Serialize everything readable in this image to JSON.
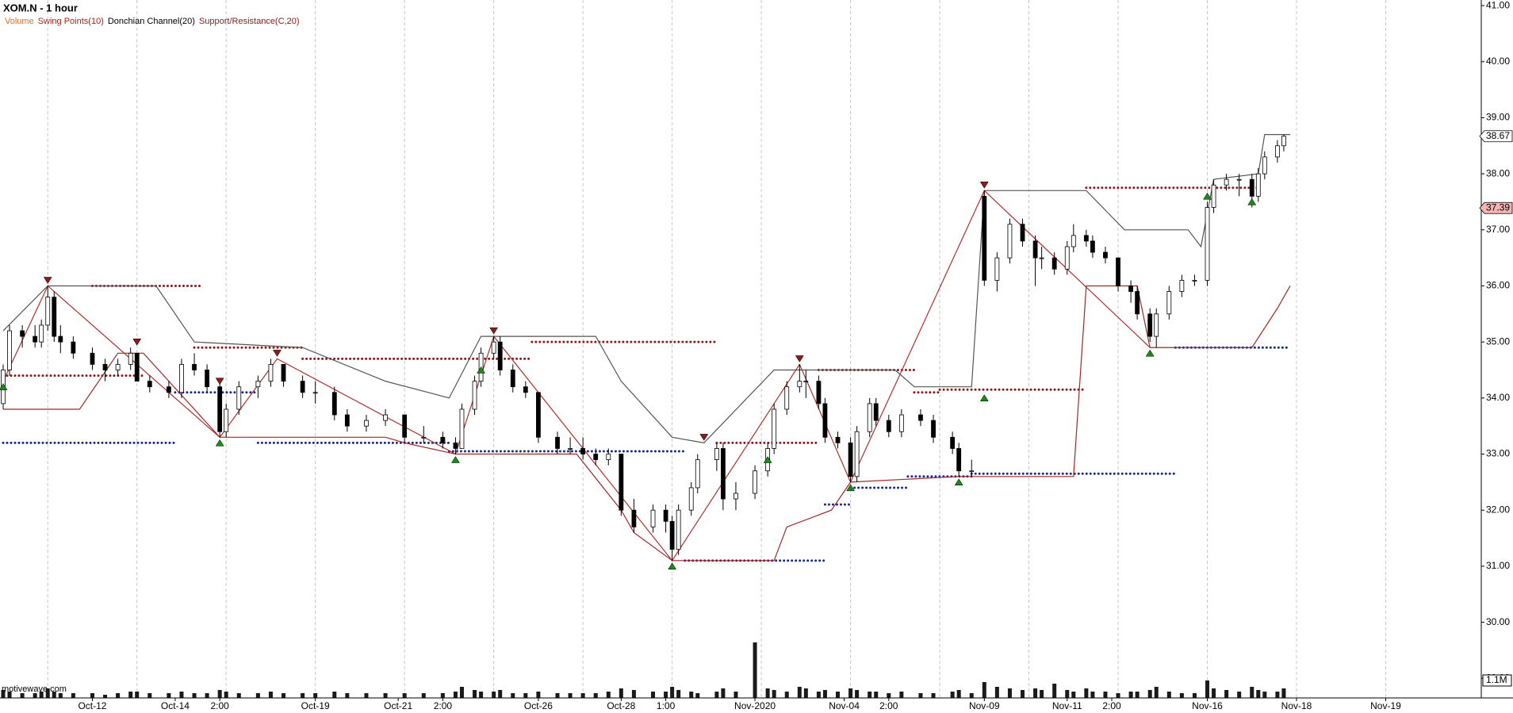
{
  "chart_data": {
    "type": "candlestick",
    "title": "XOM.N - 1 hour",
    "legend": [
      {
        "name": "Volume",
        "color": "#e07020"
      },
      {
        "name": "Swing Points(10)",
        "color": "#b02020"
      },
      {
        "name": "Donchian Channel(20)",
        "color": "#000000"
      },
      {
        "name": "Support/Resistance(C,20)",
        "color": "#8b1a1a"
      }
    ],
    "watermark": "motivewave.com",
    "xlim": [
      0,
      232
    ],
    "xgrid": [
      7,
      21,
      35,
      49,
      63,
      77,
      91,
      105,
      119,
      133,
      147,
      161,
      175,
      189,
      203,
      217
    ],
    "xticks": [
      {
        "value": 14,
        "label": "Oct-12"
      },
      {
        "value": 27,
        "label": "Oct-14"
      },
      {
        "value": 34,
        "label": "2:00"
      },
      {
        "value": 49,
        "label": "Oct-19"
      },
      {
        "value": 62,
        "label": "Oct-21"
      },
      {
        "value": 69,
        "label": "2:00"
      },
      {
        "value": 84,
        "label": "Oct-26"
      },
      {
        "value": 97,
        "label": "Oct-28"
      },
      {
        "value": 104,
        "label": "1:00"
      },
      {
        "value": 118,
        "label": "Nov-2020"
      },
      {
        "value": 132,
        "label": "Nov-04"
      },
      {
        "value": 139,
        "label": "2:00"
      },
      {
        "value": 154,
        "label": "Nov-09"
      },
      {
        "value": 167,
        "label": "Nov-11"
      },
      {
        "value": 174,
        "label": "2:00"
      },
      {
        "value": 189,
        "label": "Nov-16"
      },
      {
        "value": 203,
        "label": "Nov-18"
      },
      {
        "value": 217,
        "label": "Nov-19"
      }
    ],
    "ylim": [
      28.65,
      41.1
    ],
    "yticks": [
      {
        "value": 29,
        "label": "29.00"
      },
      {
        "value": 30,
        "label": "30.00"
      },
      {
        "value": 31,
        "label": "31.00"
      },
      {
        "value": 32,
        "label": "32.00"
      },
      {
        "value": 33,
        "label": "33.00"
      },
      {
        "value": 34,
        "label": "34.00"
      },
      {
        "value": 35,
        "label": "35.00"
      },
      {
        "value": 36,
        "label": "36.00"
      },
      {
        "value": 37,
        "label": "37.00"
      },
      {
        "value": 38,
        "label": "38.00"
      },
      {
        "value": 39,
        "label": "39.00"
      },
      {
        "value": 40,
        "label": "40.00"
      },
      {
        "value": 41,
        "label": "41.00"
      }
    ],
    "up_color": "#ffffff",
    "down_color": "#000000",
    "x": [
      0,
      1,
      3,
      5,
      6,
      7,
      8,
      9,
      11,
      14,
      16,
      18,
      20,
      21,
      23,
      26,
      28,
      30,
      32,
      34,
      35,
      37,
      40,
      42,
      44,
      47,
      49,
      52,
      54,
      57,
      60,
      63,
      66,
      69,
      71,
      72,
      74,
      75,
      77,
      78,
      80,
      82,
      84,
      87,
      89,
      91,
      93,
      95,
      97,
      99,
      102,
      104,
      105,
      106,
      108,
      109,
      112,
      113,
      115,
      118,
      120,
      121,
      123,
      125,
      126,
      128,
      129,
      131,
      133,
      134,
      136,
      137,
      139,
      141,
      144,
      146,
      149,
      150,
      152,
      154,
      156,
      158,
      160,
      162,
      163,
      165,
      167,
      168,
      170,
      171,
      173,
      175,
      177,
      178,
      180,
      181,
      183,
      185,
      187,
      189,
      190,
      192,
      194,
      196,
      197,
      198,
      200,
      201
    ],
    "open": [
      33.9,
      34.5,
      35.2,
      35.1,
      35.0,
      35.3,
      35.8,
      35.1,
      35.0,
      34.8,
      34.6,
      34.5,
      34.6,
      34.8,
      34.3,
      34.2,
      34.1,
      34.6,
      34.5,
      34.2,
      33.4,
      33.8,
      34.2,
      34.3,
      34.6,
      34.3,
      34.1,
      34.1,
      33.7,
      33.5,
      33.6,
      33.7,
      33.3,
      33.3,
      33.2,
      33.1,
      33.8,
      34.3,
      34.8,
      35.0,
      34.5,
      34.2,
      34.1,
      33.3,
      33.1,
      33.1,
      33.0,
      32.9,
      33.0,
      32.0,
      31.7,
      32.0,
      31.8,
      31.3,
      32.0,
      32.4,
      32.9,
      33.1,
      32.2,
      32.3,
      32.7,
      33.1,
      33.8,
      34.2,
      34.3,
      34.3,
      33.9,
      33.3,
      33.2,
      32.6,
      33.4,
      33.9,
      33.6,
      33.4,
      33.7,
      33.6,
      33.3,
      33.1,
      32.7,
      37.6,
      36.1,
      36.5,
      37.1,
      36.8,
      36.5,
      36.5,
      36.3,
      36.7,
      36.9,
      36.8,
      36.6,
      36.5,
      36.0,
      35.9,
      35.5,
      35.1,
      35.5,
      35.9,
      36.1,
      36.1,
      37.4,
      37.8,
      37.9,
      37.9,
      37.6,
      38.0,
      38.3,
      38.5
    ],
    "high": [
      34.6,
      35.3,
      35.3,
      35.3,
      35.4,
      36.0,
      35.9,
      35.3,
      35.1,
      34.9,
      34.7,
      34.7,
      34.9,
      34.8,
      34.4,
      34.3,
      34.7,
      34.8,
      34.6,
      34.3,
      33.9,
      34.3,
      34.4,
      34.7,
      34.6,
      34.4,
      34.3,
      34.2,
      33.8,
      33.7,
      33.8,
      33.7,
      33.5,
      33.4,
      33.3,
      33.9,
      34.4,
      34.9,
      35.1,
      35.1,
      34.6,
      34.3,
      34.1,
      33.4,
      33.3,
      33.3,
      33.1,
      33.1,
      33.0,
      32.2,
      32.1,
      32.1,
      31.9,
      32.1,
      32.5,
      33.0,
      33.2,
      33.2,
      32.5,
      32.8,
      33.2,
      33.9,
      34.3,
      34.6,
      34.5,
      34.4,
      34.0,
      33.4,
      33.3,
      33.5,
      34.0,
      34.0,
      33.7,
      33.8,
      33.8,
      33.7,
      33.4,
      33.2,
      32.9,
      37.7,
      36.6,
      37.2,
      37.2,
      36.9,
      36.7,
      36.6,
      36.8,
      37.1,
      37.0,
      36.9,
      36.7,
      36.5,
      36.1,
      36.0,
      35.6,
      35.6,
      36.0,
      36.2,
      36.2,
      37.5,
      37.9,
      38.0,
      38.0,
      38.0,
      38.1,
      38.4,
      38.6,
      38.7
    ],
    "low": [
      33.8,
      34.4,
      34.9,
      34.9,
      34.9,
      35.2,
      35.0,
      34.8,
      34.7,
      34.5,
      34.3,
      34.4,
      34.5,
      34.3,
      34.1,
      34.0,
      34.0,
      34.4,
      34.1,
      33.3,
      33.3,
      33.7,
      34.0,
      34.2,
      34.2,
      34.0,
      33.9,
      33.6,
      33.4,
      33.4,
      33.5,
      33.2,
      33.2,
      33.1,
      33.0,
      33.1,
      33.7,
      34.2,
      34.7,
      34.4,
      34.1,
      34.0,
      33.2,
      33.0,
      33.0,
      32.9,
      32.8,
      32.8,
      31.9,
      31.6,
      31.6,
      31.6,
      31.1,
      31.2,
      31.9,
      32.3,
      32.7,
      32.0,
      32.0,
      32.2,
      32.6,
      33.0,
      33.7,
      34.1,
      34.0,
      33.8,
      33.2,
      33.1,
      32.5,
      32.5,
      33.3,
      33.5,
      33.3,
      33.3,
      33.5,
      33.2,
      33.0,
      32.6,
      32.6,
      36.0,
      35.9,
      36.4,
      36.7,
      36.0,
      36.3,
      36.2,
      36.2,
      36.6,
      36.7,
      36.5,
      36.4,
      35.9,
      35.7,
      35.4,
      35.0,
      34.9,
      35.4,
      35.8,
      36.0,
      36.0,
      37.3,
      37.7,
      37.6,
      37.4,
      37.5,
      37.9,
      38.2,
      38.4
    ],
    "close": [
      34.5,
      35.2,
      35.1,
      35.0,
      35.3,
      35.8,
      35.1,
      35.0,
      34.8,
      34.6,
      34.5,
      34.6,
      34.8,
      34.3,
      34.2,
      34.1,
      34.6,
      34.5,
      34.2,
      33.4,
      33.8,
      34.2,
      34.3,
      34.6,
      34.3,
      34.1,
      34.1,
      33.7,
      33.5,
      33.6,
      33.7,
      33.3,
      33.3,
      33.2,
      33.1,
      33.8,
      34.3,
      34.8,
      35.0,
      34.5,
      34.2,
      34.1,
      33.3,
      33.1,
      33.1,
      33.0,
      32.9,
      33.0,
      32.0,
      31.7,
      32.0,
      31.8,
      31.3,
      32.0,
      32.4,
      32.9,
      33.1,
      32.2,
      32.3,
      32.7,
      33.1,
      33.8,
      34.2,
      34.3,
      34.3,
      33.9,
      33.3,
      33.2,
      32.6,
      33.4,
      33.9,
      33.6,
      33.4,
      33.7,
      33.6,
      33.3,
      33.1,
      32.7,
      32.7,
      36.1,
      36.5,
      37.1,
      36.8,
      36.5,
      36.5,
      36.3,
      36.7,
      36.9,
      36.8,
      36.6,
      36.5,
      36.0,
      35.9,
      35.5,
      35.1,
      35.5,
      35.9,
      36.1,
      36.1,
      37.4,
      37.8,
      37.9,
      37.9,
      37.6,
      38.0,
      38.3,
      38.5,
      38.67
    ],
    "volume": {
      "color": "#1a1a1a",
      "vlim": [
        0,
        4
      ],
      "ticks": [
        {
          "value": 1.1,
          "label": "1.1M"
        }
      ],
      "values": [
        0.5,
        0.4,
        0.3,
        0.3,
        0.4,
        0.6,
        0.4,
        0.3,
        0.3,
        0.3,
        0.2,
        0.3,
        0.4,
        0.4,
        0.3,
        0.3,
        0.4,
        0.3,
        0.3,
        0.5,
        0.4,
        0.3,
        0.3,
        0.4,
        0.3,
        0.3,
        0.3,
        0.4,
        0.3,
        0.3,
        0.3,
        0.3,
        0.3,
        0.3,
        0.4,
        0.7,
        0.5,
        0.4,
        0.4,
        0.5,
        0.3,
        0.3,
        0.4,
        0.3,
        0.3,
        0.3,
        0.3,
        0.4,
        0.6,
        0.5,
        0.4,
        0.4,
        0.7,
        0.5,
        0.4,
        0.3,
        0.4,
        0.6,
        0.4,
        3.5,
        0.6,
        0.5,
        0.4,
        0.7,
        0.6,
        0.4,
        0.5,
        0.4,
        0.6,
        0.5,
        0.4,
        0.4,
        0.3,
        0.4,
        0.3,
        0.3,
        0.4,
        0.5,
        0.3,
        1.0,
        0.7,
        0.6,
        0.5,
        0.6,
        0.5,
        0.9,
        0.5,
        0.4,
        0.6,
        0.4,
        0.4,
        0.3,
        0.4,
        0.4,
        0.5,
        0.7,
        0.4,
        0.3,
        0.3,
        1.1,
        0.6,
        0.5,
        0.4,
        0.7,
        0.5,
        0.4,
        0.4,
        0.6
      ]
    },
    "lines": [
      {
        "color": "#555555",
        "x": [
          0,
          7,
          24,
          30,
          47,
          60,
          70,
          75,
          93,
          97,
          105,
          110,
          121,
          140,
          143,
          152,
          154,
          170,
          176,
          186,
          188,
          190,
          197,
          198,
          202
        ],
        "values": [
          35.2,
          36.0,
          36.0,
          35.0,
          34.9,
          34.3,
          34.0,
          35.1,
          35.1,
          34.3,
          33.3,
          33.2,
          34.5,
          34.5,
          34.2,
          34.2,
          37.7,
          37.7,
          37.0,
          37.0,
          36.7,
          37.9,
          38.0,
          38.7,
          38.7
        ]
      },
      {
        "color": "#a02828",
        "x": [
          0,
          12,
          18,
          22,
          34,
          60,
          63,
          71,
          90,
          97,
          99,
          105,
          121,
          123,
          130,
          133,
          150,
          168,
          170,
          178,
          180,
          196,
          200,
          202
        ],
        "values": [
          33.8,
          33.8,
          34.8,
          34.8,
          33.3,
          33.3,
          33.2,
          33.0,
          33.0,
          32.0,
          31.6,
          31.1,
          31.1,
          31.7,
          32.0,
          32.5,
          32.6,
          32.6,
          36.0,
          36.0,
          34.9,
          34.9,
          35.6,
          36.0
        ]
      },
      {
        "color": "#b03030",
        "x": [
          0,
          7,
          34,
          43,
          71,
          77,
          105,
          125,
          133,
          154,
          180
        ],
        "values": [
          34.3,
          36.0,
          33.3,
          34.7,
          33.0,
          35.1,
          31.1,
          34.6,
          32.5,
          37.7,
          34.9
        ]
      }
    ],
    "swing_highs": {
      "color": "#8b1a1a",
      "x": [
        7,
        21,
        34,
        43,
        77,
        110,
        125,
        154
      ],
      "values": [
        36.0,
        34.9,
        34.2,
        34.7,
        35.1,
        33.2,
        34.6,
        37.7
      ]
    },
    "swing_lows": {
      "color": "#1a8a1a",
      "x": [
        0,
        34,
        71,
        75,
        105,
        120,
        133,
        150,
        154,
        180,
        189,
        196
      ],
      "values": [
        34.3,
        33.3,
        33.0,
        34.6,
        31.1,
        33.0,
        32.5,
        32.6,
        34.1,
        34.9,
        37.7,
        37.6
      ]
    },
    "resistance": {
      "color": "#8b1a1a",
      "segments": [
        [
          0,
          22,
          34.4
        ],
        [
          14,
          31,
          36.0
        ],
        [
          30,
          47,
          34.9
        ],
        [
          47,
          83,
          34.7
        ],
        [
          83,
          112,
          35.0
        ],
        [
          112,
          128,
          33.2
        ],
        [
          128,
          143,
          34.5
        ],
        [
          143,
          147,
          34.1
        ],
        [
          147,
          170,
          34.15
        ],
        [
          170,
          197,
          37.75
        ]
      ]
    },
    "support": {
      "color": "#1a2a8a",
      "segments": [
        [
          0,
          27,
          33.2
        ],
        [
          27,
          40,
          34.1
        ],
        [
          40,
          70,
          33.2
        ],
        [
          70,
          107,
          33.05
        ],
        [
          107,
          129,
          31.1
        ],
        [
          129,
          133,
          32.1
        ],
        [
          133,
          142,
          32.4
        ],
        [
          142,
          152,
          32.6
        ],
        [
          152,
          184,
          32.65
        ],
        [
          184,
          202,
          34.9
        ]
      ]
    },
    "price_markers": [
      {
        "value": 38.67,
        "color": "#ffffff"
      },
      {
        "value": 37.39,
        "color": "#f4b4b4"
      }
    ]
  }
}
